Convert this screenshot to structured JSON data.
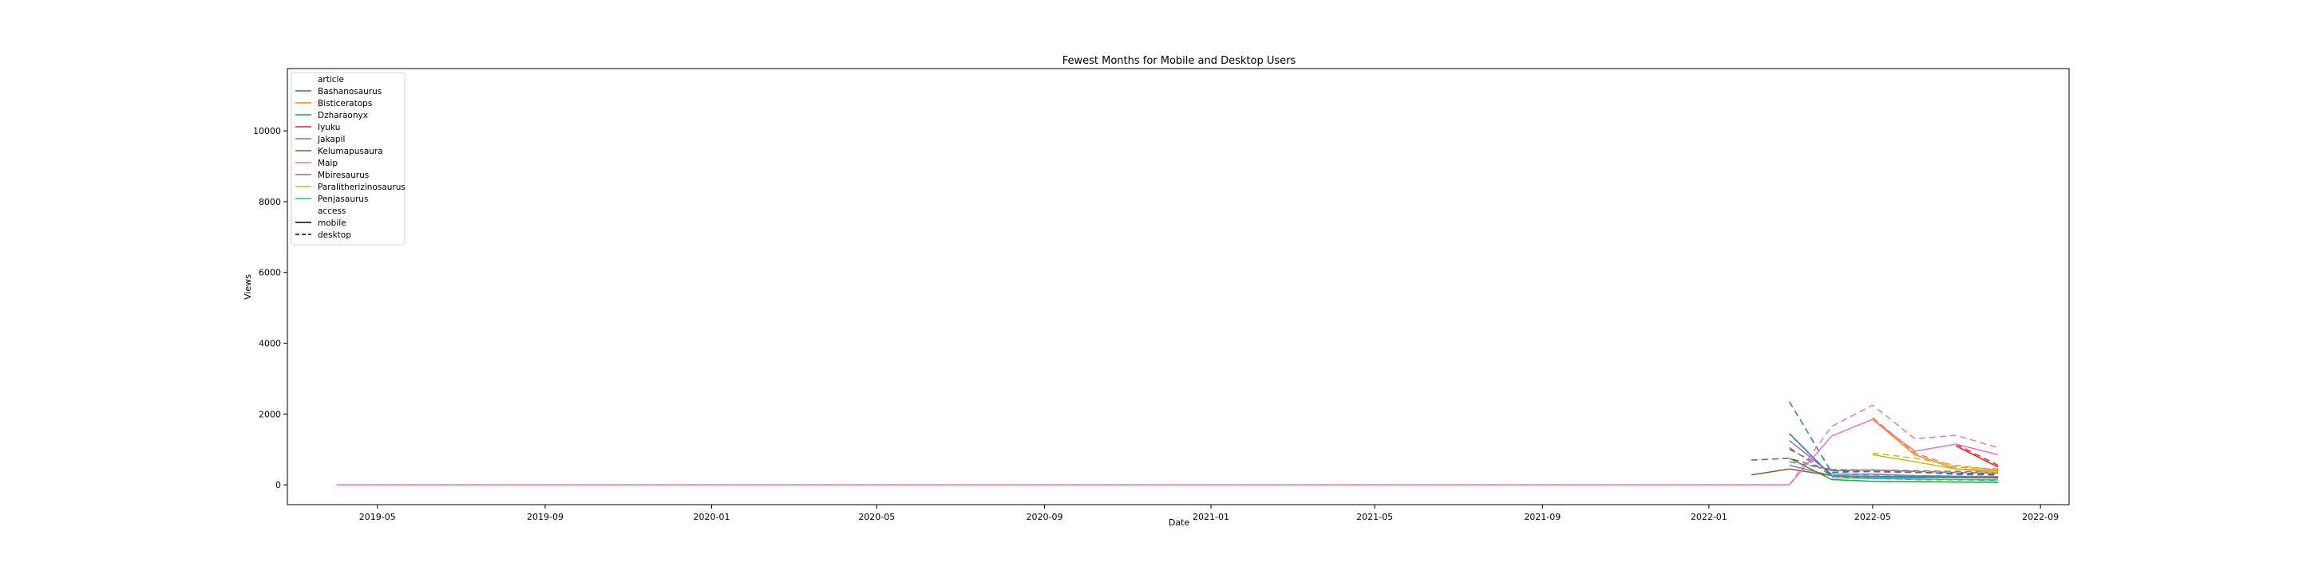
{
  "chart_data": {
    "type": "line",
    "title": "Fewest Months for Mobile and Desktop Users",
    "xlabel": "Date",
    "ylabel": "Views",
    "xlim": [
      "2019-02-24",
      "2022-09-22"
    ],
    "ylim": [
      -560,
      11760
    ],
    "grid": false,
    "legend_position": "top-left",
    "x_ticks": [
      "2019-05",
      "2019-09",
      "2020-01",
      "2020-05",
      "2020-09",
      "2021-01",
      "2021-05",
      "2021-09",
      "2022-01",
      "2022-05",
      "2022-09"
    ],
    "y_ticks": [
      0,
      2000,
      4000,
      6000,
      8000,
      10000
    ],
    "legend": {
      "article_heading": "article",
      "access_heading": "access",
      "access_entries": [
        {
          "label": "mobile",
          "dash": "solid"
        },
        {
          "label": "desktop",
          "dash": "dashed"
        }
      ]
    },
    "series": [
      {
        "name": "Bashanosaurus",
        "color": "#1f77b4",
        "mobile": {
          "x": [
            "2022-03-01",
            "2022-04-01",
            "2022-05-01",
            "2022-06-01",
            "2022-07-01",
            "2022-08-01"
          ],
          "y": [
            1450,
            250,
            220,
            200,
            210,
            220
          ]
        },
        "desktop": {
          "x": [
            "2022-03-01",
            "2022-04-01",
            "2022-05-01",
            "2022-06-01",
            "2022-07-01",
            "2022-08-01"
          ],
          "y": [
            2350,
            350,
            380,
            360,
            300,
            280
          ]
        }
      },
      {
        "name": "Bisticeratops",
        "color": "#ff7f0e",
        "mobile": {
          "x": [
            "2022-05-01",
            "2022-06-01",
            "2022-07-01",
            "2022-08-01"
          ],
          "y": [
            1850,
            850,
            450,
            400
          ]
        },
        "desktop": {
          "x": [
            "2022-05-01",
            "2022-06-01",
            "2022-07-01",
            "2022-08-01"
          ],
          "y": [
            1900,
            900,
            500,
            450
          ]
        }
      },
      {
        "name": "Dzharaonyx",
        "color": "#2ca02c",
        "mobile": {
          "x": [
            "2022-03-01",
            "2022-04-01",
            "2022-05-01",
            "2022-06-01",
            "2022-07-01",
            "2022-08-01"
          ],
          "y": [
            750,
            150,
            100,
            90,
            80,
            70
          ]
        },
        "desktop": {
          "x": [
            "2022-03-01",
            "2022-04-01",
            "2022-05-01",
            "2022-06-01",
            "2022-07-01",
            "2022-08-01"
          ],
          "y": [
            1050,
            250,
            180,
            150,
            140,
            130
          ]
        }
      },
      {
        "name": "Iyuku",
        "color": "#d62728",
        "mobile": {
          "x": [
            "2022-07-01",
            "2022-08-01"
          ],
          "y": [
            1100,
            500
          ]
        },
        "desktop": {
          "x": [
            "2022-07-01",
            "2022-08-01"
          ],
          "y": [
            1150,
            550
          ]
        }
      },
      {
        "name": "Jakapil",
        "color": "#9467bd",
        "mobile": {
          "x": [
            "2022-03-01",
            "2022-04-01",
            "2022-05-01",
            "2022-06-01",
            "2022-07-01",
            "2022-08-01"
          ],
          "y": [
            1250,
            300,
            300,
            260,
            240,
            230
          ]
        },
        "desktop": {
          "x": [
            "2022-03-01",
            "2022-04-01",
            "2022-05-01",
            "2022-06-01",
            "2022-07-01",
            "2022-08-01"
          ],
          "y": [
            1000,
            400,
            420,
            380,
            350,
            330
          ]
        }
      },
      {
        "name": "Kelumapusaura",
        "color": "#8c564b",
        "mobile": {
          "x": [
            "2022-02-01",
            "2022-03-01",
            "2022-04-01",
            "2022-05-01",
            "2022-06-01",
            "2022-07-01",
            "2022-08-01"
          ],
          "y": [
            280,
            450,
            260,
            240,
            230,
            220,
            210
          ]
        },
        "desktop": {
          "x": [
            "2022-02-01",
            "2022-03-01",
            "2022-04-01",
            "2022-05-01",
            "2022-06-01",
            "2022-07-01",
            "2022-08-01"
          ],
          "y": [
            700,
            750,
            400,
            370,
            350,
            330,
            310
          ]
        }
      },
      {
        "name": "Maip",
        "color": "#e377c2",
        "mobile": {
          "x": [
            "2019-04-01",
            "2019-07-01",
            "2019-10-01",
            "2020-01-01",
            "2020-04-01",
            "2020-07-01",
            "2020-10-01",
            "2021-01-01",
            "2021-04-01",
            "2021-07-01",
            "2021-10-01",
            "2022-01-01",
            "2022-02-01",
            "2022-03-01",
            "2022-04-01",
            "2022-05-01",
            "2022-06-01",
            "2022-07-01",
            "2022-08-01"
          ],
          "y": [
            0,
            0,
            0,
            0,
            0,
            0,
            0,
            0,
            0,
            0,
            0,
            0,
            0,
            0,
            1380,
            1850,
            950,
            1150,
            850
          ]
        },
        "desktop": {
          "x": [
            "2019-04-01",
            "2019-07-01",
            "2019-10-01",
            "2020-01-01",
            "2020-04-01",
            "2020-07-01",
            "2020-10-01",
            "2021-01-01",
            "2021-04-01",
            "2021-07-01",
            "2021-10-01",
            "2022-01-01",
            "2022-02-01",
            "2022-03-01",
            "2022-04-01",
            "2022-05-01",
            "2022-06-01",
            "2022-07-01",
            "2022-08-01"
          ],
          "y": [
            0,
            0,
            0,
            0,
            0,
            0,
            0,
            0,
            0,
            0,
            0,
            0,
            0,
            0,
            1650,
            2250,
            1300,
            1400,
            1050
          ]
        }
      },
      {
        "name": "Mbiresaurus",
        "color": "#7f7f7f",
        "mobile": {
          "x": [
            "2022-03-01",
            "2022-04-01",
            "2022-05-01",
            "2022-06-01",
            "2022-07-01",
            "2022-08-01"
          ],
          "y": [
            550,
            260,
            230,
            210,
            200,
            190
          ]
        },
        "desktop": {
          "x": [
            "2022-03-01",
            "2022-04-01",
            "2022-05-01",
            "2022-06-01",
            "2022-07-01",
            "2022-08-01"
          ],
          "y": [
            650,
            430,
            420,
            400,
            380,
            360
          ]
        }
      },
      {
        "name": "Paralitherizinosaurus",
        "color": "#bcbd22",
        "mobile": {
          "x": [
            "2022-05-01",
            "2022-06-01",
            "2022-07-01",
            "2022-08-01"
          ],
          "y": [
            850,
            650,
            450,
            350
          ]
        },
        "desktop": {
          "x": [
            "2022-05-01",
            "2022-06-01",
            "2022-07-01",
            "2022-08-01"
          ],
          "y": [
            900,
            750,
            550,
            420
          ]
        }
      },
      {
        "name": "Penjasaurus",
        "color": "#17becf",
        "mobile": {
          "x": [
            "2022-04-01",
            "2022-05-01",
            "2022-06-01",
            "2022-07-01",
            "2022-08-01"
          ],
          "y": [
            200,
            180,
            160,
            150,
            140
          ]
        },
        "desktop": {
          "x": [
            "2022-04-01",
            "2022-05-01",
            "2022-06-01",
            "2022-07-01",
            "2022-08-01"
          ],
          "y": [
            300,
            280,
            260,
            250,
            240
          ]
        }
      }
    ]
  }
}
